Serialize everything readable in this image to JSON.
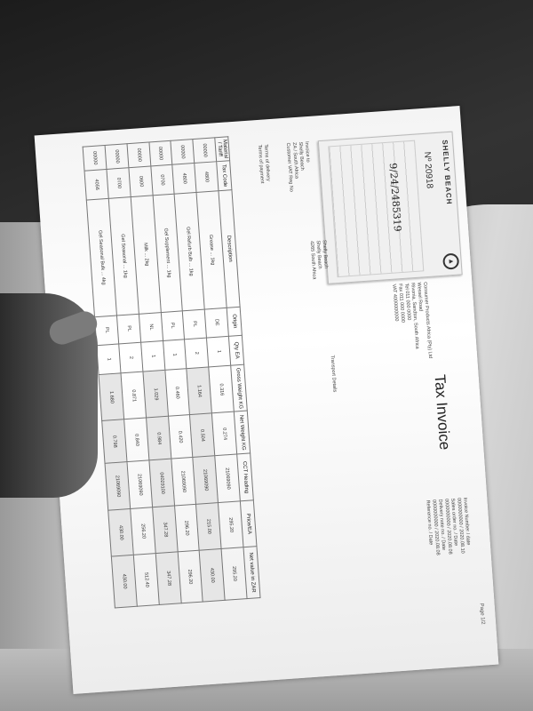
{
  "document": {
    "title": "Tax Invoice",
    "page_label": "Page 1/2",
    "receipt_stub": {
      "brand": "SHELLY BEACH",
      "number": "Nº 20918",
      "handwritten": "9/24/2485319",
      "logo_icon": "circle-logo-icon"
    },
    "supplier_lines": [
      "Consumer Products Africa (Pty) Ltd",
      "Wessel Road",
      "Rivonia, Sandton, South Africa",
      "Tel 011 000 0000",
      "Fax 011 000 0000",
      "VAT 4000000000"
    ],
    "ship_to_lines": [
      "Shelly Beach",
      "Shelly Beach",
      "4265 South Africa"
    ],
    "transport_label": "Transport Details",
    "customer_lines": [
      "Invoice to",
      "Shelly Beach",
      "ZA / South Africa",
      "Customer VAT Reg No"
    ],
    "terms_lines": [
      "Terms of delivery",
      "Terms of payment"
    ],
    "invoice_number_lines": [
      "Invoice Number / date",
      "0000000000 / 2020.08.10",
      "Sales order no. / Date",
      "0000000000 / 2020.08.08",
      "Delivery note no. / Date",
      "0000000000 / 2020.08.08",
      "Reference no. / Date"
    ]
  },
  "table": {
    "headers": [
      "Material / Tariff",
      "Tax Code",
      "Description",
      "Origin",
      "Qty EA",
      "Gross Weight KG",
      "Net Weight KG",
      "CCT Heading",
      "Price/EA",
      "Net value in ZAR"
    ],
    "rows": [
      [
        "00000",
        "4800",
        "Grease ... 1kg",
        "DE",
        "1",
        "0.316",
        "0.274",
        "21069090",
        "295.20",
        "295.20"
      ],
      [
        "00000",
        "4800",
        "Gel Refurb Bulb ... 1kg",
        "PL",
        "2",
        "1.164",
        "0.504",
        "21069090",
        "215.00",
        "430.00"
      ],
      [
        "00000",
        "0700",
        "Gel Supplement ... 1kg",
        "PL",
        "1",
        "0.460",
        "0.420",
        "21069090",
        "296.20",
        "296.20"
      ],
      [
        "00000",
        "0600",
        "Milk ... 2kg",
        "NL",
        "1",
        "1.029",
        "0.984",
        "04029100",
        "347.28",
        "347.28"
      ],
      [
        "00000",
        "0700",
        "Gel Seasonal ... 1kg",
        "PL",
        "2",
        "0.871",
        "0.840",
        "21069090",
        "256.20",
        "512.40"
      ],
      [
        "00000",
        "4056",
        "Gel Seasonal Bulk ... 4kg",
        "PL",
        "1",
        "1.680",
        "0.798",
        "21069090",
        "430.00",
        "430.00"
      ]
    ]
  }
}
